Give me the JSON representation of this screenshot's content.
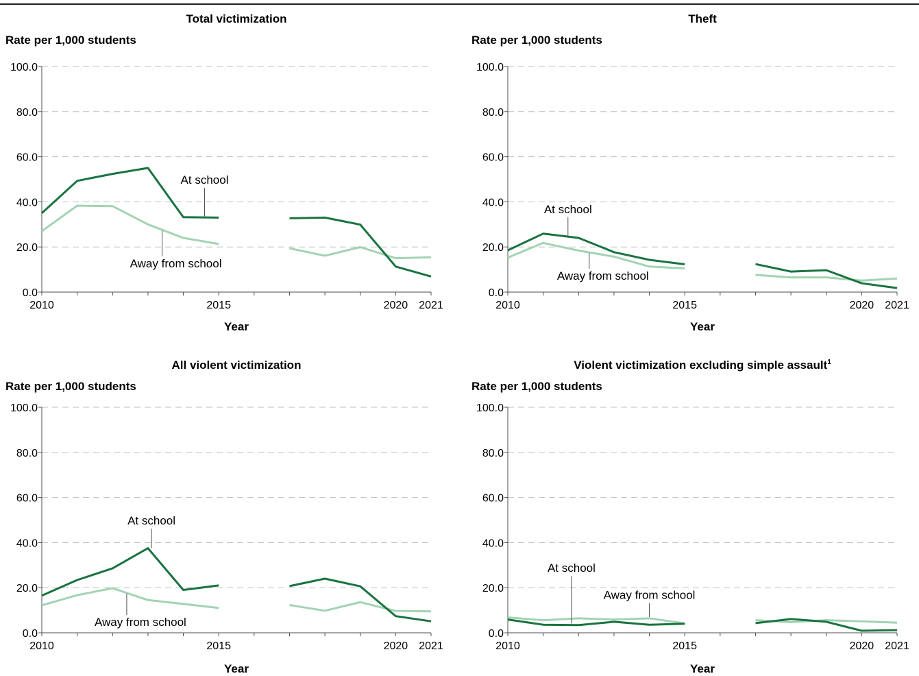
{
  "colors": {
    "at_school": "#1a7340",
    "away_from_school": "#a3d3b4",
    "grid": "#bfbfbf",
    "axis": "#4d4d4d"
  },
  "chart_data": [
    {
      "type": "line",
      "title": "Total victimization",
      "title_sup": "",
      "ylabel": "Rate per 1,000 students",
      "xlabel": "Year",
      "ylim": [
        0,
        100
      ],
      "yticks": [
        "0.0",
        "20.0",
        "40.0",
        "60.0",
        "80.0",
        "100.0"
      ],
      "xticks": [
        "2010",
        "2015",
        "2020",
        "2021"
      ],
      "x": [
        2010,
        2011,
        2012,
        2013,
        2014,
        2015,
        2016,
        2017,
        2018,
        2019,
        2020,
        2021
      ],
      "grid": true,
      "series": [
        {
          "name": "At school",
          "values": [
            35.0,
            49.3,
            52.4,
            55.0,
            33.2,
            33.0,
            null,
            32.7,
            33.0,
            29.9,
            11.3,
            6.9
          ]
        },
        {
          "name": "Away from school",
          "values": [
            27.0,
            38.3,
            38.1,
            30.0,
            24.0,
            21.3,
            null,
            19.4,
            16.1,
            19.9,
            15.0,
            15.4
          ]
        }
      ],
      "annotations": [
        {
          "text": "At school",
          "series": "At school",
          "at_x": 2014.6,
          "at_y": 33.0,
          "label_y": 48,
          "side": "above"
        },
        {
          "text": "Away from school",
          "series": "Away from school",
          "at_x": 2013.4,
          "at_y": 27.8,
          "label_y": 11,
          "side": "below"
        }
      ]
    },
    {
      "type": "line",
      "title": "Theft",
      "title_sup": "",
      "ylabel": "Rate per 1,000 students",
      "xlabel": "Year",
      "ylim": [
        0,
        100
      ],
      "yticks": [
        "0.0",
        "20.0",
        "40.0",
        "60.0",
        "80.0",
        "100.0"
      ],
      "xticks": [
        "2010",
        "2015",
        "2020",
        "2021"
      ],
      "x": [
        2010,
        2011,
        2012,
        2013,
        2014,
        2015,
        2016,
        2017,
        2018,
        2019,
        2020,
        2021
      ],
      "grid": true,
      "series": [
        {
          "name": "At school",
          "values": [
            18.5,
            25.9,
            24.0,
            17.7,
            14.3,
            12.3,
            null,
            12.4,
            9.1,
            9.7,
            3.9,
            1.8
          ]
        },
        {
          "name": "Away from school",
          "values": [
            15.3,
            21.8,
            18.4,
            15.7,
            11.3,
            10.5,
            null,
            7.6,
            6.5,
            6.5,
            5.1,
            6.0
          ]
        }
      ],
      "annotations": [
        {
          "text": "At school",
          "series": "At school",
          "at_x": 2011.7,
          "at_y": 24.5,
          "label_y": 35,
          "side": "above"
        },
        {
          "text": "Away from school",
          "series": "Away from school",
          "at_x": 2012.3,
          "at_y": 17.8,
          "label_y": 5.5,
          "side": "below"
        }
      ]
    },
    {
      "type": "line",
      "title": "All violent victimization",
      "title_sup": "",
      "ylabel": "Rate per 1,000 students",
      "xlabel": "Year",
      "ylim": [
        0,
        100
      ],
      "yticks": [
        "0.0",
        "20.0",
        "40.0",
        "60.0",
        "80.0",
        "100.0"
      ],
      "xticks": [
        "2010",
        "2015",
        "2020",
        "2021"
      ],
      "x": [
        2010,
        2011,
        2012,
        2013,
        2014,
        2015,
        2016,
        2017,
        2018,
        2019,
        2020,
        2021
      ],
      "grid": true,
      "series": [
        {
          "name": "At school",
          "values": [
            16.5,
            23.4,
            28.6,
            37.5,
            19.0,
            21.0,
            null,
            20.7,
            24.0,
            20.6,
            7.4,
            5.1
          ]
        },
        {
          "name": "Away from school",
          "values": [
            12.2,
            16.7,
            19.8,
            14.5,
            12.8,
            11.0,
            null,
            12.3,
            9.8,
            13.6,
            9.7,
            9.5
          ]
        }
      ],
      "annotations": [
        {
          "text": "At school",
          "series": "At school",
          "at_x": 2013.1,
          "at_y": 37.0,
          "label_y": 48,
          "side": "above"
        },
        {
          "text": "Away from school",
          "series": "Away from school",
          "at_x": 2012.4,
          "at_y": 18.0,
          "label_y": 3,
          "side": "below"
        }
      ]
    },
    {
      "type": "line",
      "title": "Violent victimization excluding simple assault",
      "title_sup": "1",
      "ylabel": "Rate per 1,000 students",
      "xlabel": "Year",
      "ylim": [
        0,
        100
      ],
      "yticks": [
        "0.0",
        "20.0",
        "40.0",
        "60.0",
        "80.0",
        "100.0"
      ],
      "xticks": [
        "2010",
        "2015",
        "2020",
        "2021"
      ],
      "x": [
        2010,
        2011,
        2012,
        2013,
        2014,
        2015,
        2016,
        2017,
        2018,
        2019,
        2020,
        2021
      ],
      "grid": true,
      "series": [
        {
          "name": "At school",
          "values": [
            5.9,
            3.6,
            3.4,
            4.9,
            3.6,
            4.0,
            null,
            4.3,
            6.1,
            4.9,
            0.9,
            1.2
          ]
        },
        {
          "name": "Away from school",
          "values": [
            6.8,
            5.6,
            6.4,
            5.9,
            6.4,
            4.2,
            null,
            5.6,
            4.7,
            5.6,
            5.1,
            4.5
          ]
        }
      ],
      "annotations": [
        {
          "text": "At school",
          "series": "At school",
          "at_x": 2011.8,
          "at_y": 3.5,
          "label_y": 27,
          "side": "above"
        },
        {
          "text": "Away from school",
          "series": "Away from school",
          "at_x": 2014.0,
          "at_y": 6.4,
          "label_y": 15,
          "side": "above"
        }
      ]
    }
  ]
}
